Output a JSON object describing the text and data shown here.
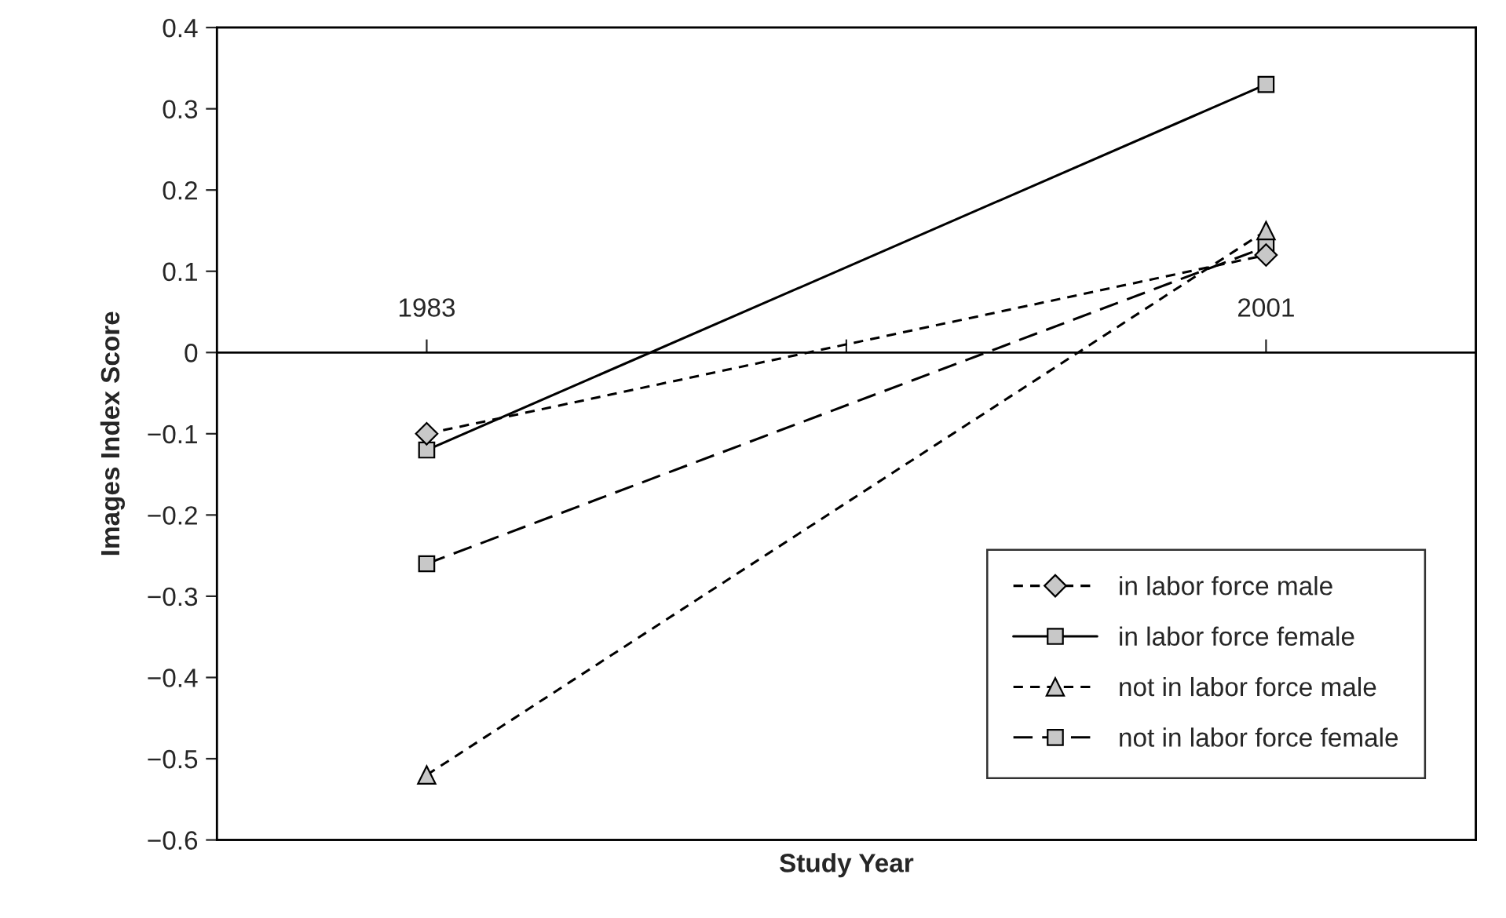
{
  "chart_data": {
    "type": "line",
    "xlabel": "Study Year",
    "ylabel": "Images Index Score",
    "x": [
      1983,
      2001
    ],
    "series": [
      {
        "name": "in labor force male",
        "color": "#000000",
        "values": [
          -0.1,
          0.12
        ],
        "marker": "diamond",
        "line_style": "dashed"
      },
      {
        "name": "in labor force female",
        "color": "#000000",
        "values": [
          -0.12,
          0.33
        ],
        "marker": "square",
        "line_style": "solid"
      },
      {
        "name": "not in labor force male",
        "color": "#000000",
        "values": [
          -0.52,
          0.15
        ],
        "marker": "triangle",
        "line_style": "dashed"
      },
      {
        "name": "not in labor force female",
        "color": "#000000",
        "values": [
          -0.26,
          0.13
        ],
        "marker": "square",
        "line_style": "dashed"
      }
    ],
    "xlim": [
      1978.5,
      2005.5
    ],
    "xticks": [
      1983,
      {
        "value": 1992,
        "label": null
      },
      2001
    ],
    "ylim": [
      -0.6,
      0.4
    ],
    "yticks": [
      {
        "value": -0.6,
        "label": "−0.6"
      },
      {
        "value": -0.5,
        "label": "−0.5"
      },
      {
        "value": -0.4,
        "label": "−0.4"
      },
      {
        "value": -0.3,
        "label": "−0.3"
      },
      {
        "value": -0.2,
        "label": "−0.2"
      },
      {
        "value": -0.1,
        "label": "−0.1"
      },
      0,
      0.1,
      0.2,
      0.3,
      0.4
    ],
    "ref_lines": [
      {
        "axis": "y",
        "value": 0,
        "color": "#000000",
        "line_style": "solid"
      }
    ],
    "grid": false,
    "legend": "bottom right"
  }
}
